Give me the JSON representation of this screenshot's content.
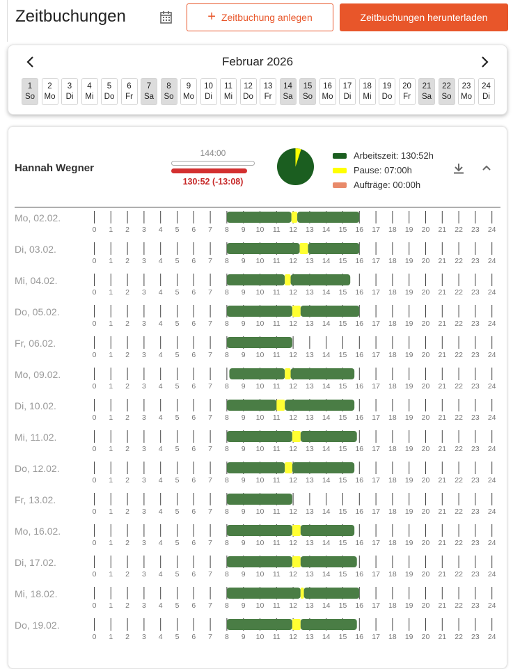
{
  "header": {
    "title": "Zeitbuchungen",
    "add_button": "Zeitbuchung anlegen",
    "download_button": "Zeitbuchungen herunterladen"
  },
  "calendar": {
    "month": "Februar 2026",
    "days": [
      {
        "num": "1",
        "wd": "So",
        "weekend": true
      },
      {
        "num": "2",
        "wd": "Mo",
        "weekend": false
      },
      {
        "num": "3",
        "wd": "Di",
        "weekend": false
      },
      {
        "num": "4",
        "wd": "Mi",
        "weekend": false
      },
      {
        "num": "5",
        "wd": "Do",
        "weekend": false
      },
      {
        "num": "6",
        "wd": "Fr",
        "weekend": false
      },
      {
        "num": "7",
        "wd": "Sa",
        "weekend": true
      },
      {
        "num": "8",
        "wd": "So",
        "weekend": true
      },
      {
        "num": "9",
        "wd": "Mo",
        "weekend": false
      },
      {
        "num": "10",
        "wd": "Di",
        "weekend": false
      },
      {
        "num": "11",
        "wd": "Mi",
        "weekend": false
      },
      {
        "num": "12",
        "wd": "Do",
        "weekend": false
      },
      {
        "num": "13",
        "wd": "Fr",
        "weekend": false
      },
      {
        "num": "14",
        "wd": "Sa",
        "weekend": true
      },
      {
        "num": "15",
        "wd": "So",
        "weekend": true
      },
      {
        "num": "16",
        "wd": "Mo",
        "weekend": false
      },
      {
        "num": "17",
        "wd": "Di",
        "weekend": false
      },
      {
        "num": "18",
        "wd": "Mi",
        "weekend": false
      },
      {
        "num": "19",
        "wd": "Do",
        "weekend": false
      },
      {
        "num": "20",
        "wd": "Fr",
        "weekend": false
      },
      {
        "num": "21",
        "wd": "Sa",
        "weekend": true
      },
      {
        "num": "22",
        "wd": "So",
        "weekend": true
      },
      {
        "num": "23",
        "wd": "Mo",
        "weekend": false
      },
      {
        "num": "24",
        "wd": "Di",
        "weekend": false
      }
    ]
  },
  "employee": {
    "name": "Hannah Wegner",
    "target_hours": "144:00",
    "actual_hours": "130:52 (-13:08)",
    "progress_fraction": 0.909,
    "legend": [
      {
        "label": "Arbeitszeit: 130:52h",
        "color": "#1b5e20"
      },
      {
        "label": "Pause: 07:00h",
        "color": "#ffff00"
      },
      {
        "label": "Aufträge: 00:00h",
        "color": "#e88a6a"
      }
    ],
    "pie_pause_fraction": 0.05
  },
  "colors": {
    "accent": "#e8562a",
    "work_bar": "#4a7d45",
    "pause_bar": "#ffff33",
    "deficit": "#c62828"
  },
  "timeline": {
    "hours": [
      "0",
      "1",
      "2",
      "3",
      "4",
      "5",
      "6",
      "7",
      "8",
      "9",
      "10",
      "11",
      "12",
      "13",
      "14",
      "15",
      "16",
      "17",
      "18",
      "19",
      "20",
      "21",
      "22",
      "23",
      "24"
    ],
    "days": [
      {
        "label": "Mo, 02.02.",
        "segments": [
          {
            "type": "work",
            "from": 8.0,
            "to": 11.9
          },
          {
            "type": "pause",
            "from": 11.9,
            "to": 12.25
          },
          {
            "type": "work",
            "from": 12.25,
            "to": 16.0
          }
        ]
      },
      {
        "label": "Di, 03.02.",
        "segments": [
          {
            "type": "work",
            "from": 8.0,
            "to": 12.4
          },
          {
            "type": "pause",
            "from": 12.4,
            "to": 12.9
          },
          {
            "type": "work",
            "from": 12.9,
            "to": 16.0
          }
        ]
      },
      {
        "label": "Mi, 04.02.",
        "segments": [
          {
            "type": "work",
            "from": 8.0,
            "to": 11.5
          },
          {
            "type": "pause",
            "from": 11.5,
            "to": 11.85
          },
          {
            "type": "work",
            "from": 11.85,
            "to": 15.45
          }
        ]
      },
      {
        "label": "Do, 05.02.",
        "segments": [
          {
            "type": "work",
            "from": 8.0,
            "to": 11.95
          },
          {
            "type": "pause",
            "from": 11.95,
            "to": 12.45
          },
          {
            "type": "work",
            "from": 12.45,
            "to": 16.0
          }
        ]
      },
      {
        "label": "Fr, 06.02.",
        "segments": [
          {
            "type": "work",
            "from": 8.0,
            "to": 11.95
          }
        ]
      },
      {
        "label": "Mo, 09.02.",
        "segments": [
          {
            "type": "work",
            "from": 8.15,
            "to": 11.5
          },
          {
            "type": "pause",
            "from": 11.5,
            "to": 11.85
          },
          {
            "type": "work",
            "from": 11.85,
            "to": 15.7
          }
        ]
      },
      {
        "label": "Di, 10.02.",
        "segments": [
          {
            "type": "work",
            "from": 8.0,
            "to": 11.0
          },
          {
            "type": "pause",
            "from": 11.0,
            "to": 11.5
          },
          {
            "type": "work",
            "from": 11.5,
            "to": 15.7
          }
        ]
      },
      {
        "label": "Mi, 11.02.",
        "segments": [
          {
            "type": "work",
            "from": 8.0,
            "to": 11.95
          },
          {
            "type": "pause",
            "from": 11.95,
            "to": 12.45
          },
          {
            "type": "work",
            "from": 12.45,
            "to": 15.85
          }
        ]
      },
      {
        "label": "Do, 12.02.",
        "segments": [
          {
            "type": "work",
            "from": 8.0,
            "to": 11.5
          },
          {
            "type": "pause",
            "from": 11.5,
            "to": 11.95
          },
          {
            "type": "work",
            "from": 11.95,
            "to": 15.7
          }
        ]
      },
      {
        "label": "Fr, 13.02.",
        "segments": [
          {
            "type": "work",
            "from": 8.0,
            "to": 11.95
          }
        ]
      },
      {
        "label": "Mo, 16.02.",
        "segments": [
          {
            "type": "work",
            "from": 8.0,
            "to": 11.95
          },
          {
            "type": "pause",
            "from": 11.95,
            "to": 12.45
          },
          {
            "type": "work",
            "from": 12.45,
            "to": 15.7
          }
        ]
      },
      {
        "label": "Di, 17.02.",
        "segments": [
          {
            "type": "work",
            "from": 8.0,
            "to": 11.95
          },
          {
            "type": "pause",
            "from": 11.95,
            "to": 12.45
          },
          {
            "type": "work",
            "from": 12.45,
            "to": 15.85
          }
        ]
      },
      {
        "label": "Mi, 18.02.",
        "segments": [
          {
            "type": "work",
            "from": 8.0,
            "to": 12.45
          },
          {
            "type": "pause",
            "from": 12.45,
            "to": 12.65
          },
          {
            "type": "work",
            "from": 12.65,
            "to": 16.0
          }
        ]
      },
      {
        "label": "Do, 19.02.",
        "segments": [
          {
            "type": "work",
            "from": 8.0,
            "to": 11.95
          },
          {
            "type": "pause",
            "from": 11.95,
            "to": 12.45
          },
          {
            "type": "work",
            "from": 12.45,
            "to": 15.85
          }
        ]
      }
    ]
  }
}
